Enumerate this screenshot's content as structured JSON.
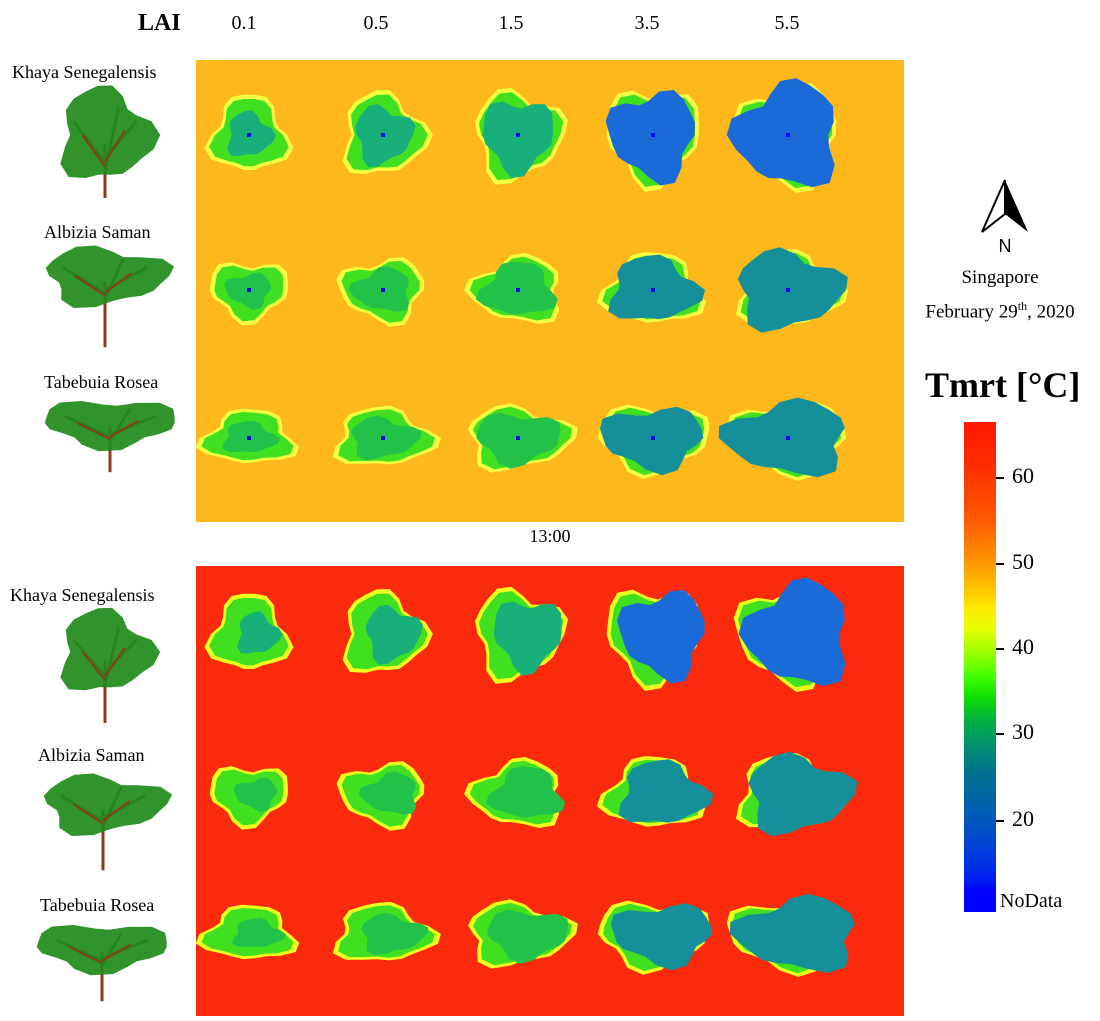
{
  "header": {
    "lai_title": "LAI",
    "lai_values": [
      "0.1",
      "0.5",
      "1.5",
      "3.5",
      "5.5"
    ]
  },
  "trees": [
    "Khaya Senegalensis",
    "Albizia Saman",
    "Tabebuia Rosea"
  ],
  "panels": [
    {
      "time_label": "13:00",
      "background": "#fdb81c"
    },
    {
      "time_label": "",
      "background": "#fa2a0c"
    }
  ],
  "compass": {
    "letter": "N"
  },
  "location": {
    "place": "Singapore",
    "date_prefix": "February 29",
    "date_sup": "th",
    "date_suffix": ", 2020"
  },
  "colorbar": {
    "title": "Tmrt [°C]",
    "ticks": [
      "60",
      "50",
      "40",
      "30",
      "20"
    ],
    "nodata_label": "NoData",
    "colors": {
      "low": "#0000ff",
      "mid": "#ffff00",
      "high": "#ff1a00"
    }
  },
  "icons": {
    "north_arrow": "north-arrow-icon",
    "tree": "tree-icon"
  }
}
